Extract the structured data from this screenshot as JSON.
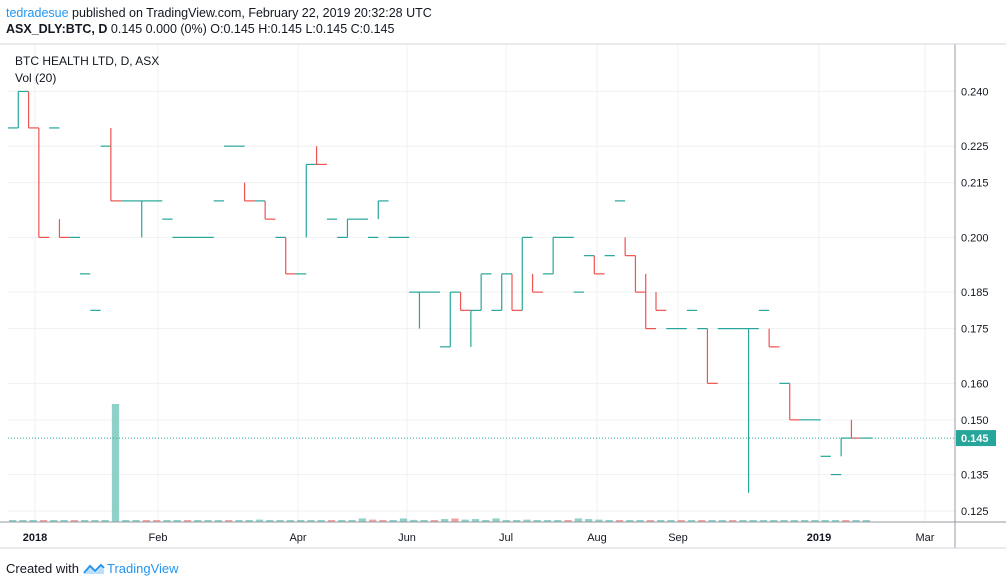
{
  "header": {
    "user": "tedradesue",
    "published": "published on TradingView.com, February 22, 2019 20:32:28 UTC",
    "symbol": "ASX_DLY:BTC, D",
    "quote": "0.145 0.000 (0%) O:0.145 H:0.145 L:0.145 C:0.145"
  },
  "footer": {
    "created_with": "Created with",
    "brand": "TradingView",
    "brand_icon": "tradingview-logo-icon"
  },
  "colors": {
    "up": "#26a69a",
    "down": "#ef5350",
    "vol_up": "#8fd0c8",
    "vol_down": "#f2a3a1",
    "grid": "#eef0f3",
    "axis_text": "#131722",
    "last_price_bg": "#26a69a"
  },
  "chart_data": {
    "type": "ohlc-step",
    "title": "BTC HEALTH LTD, D, ASX",
    "indicator": "Vol (20)",
    "x_labels": [
      "2018",
      "Feb",
      "Apr",
      "Jun",
      "Jul",
      "Aug",
      "Sep",
      "2019",
      "Mar"
    ],
    "bold_x_labels": [
      "2018",
      "2019"
    ],
    "y_ticks": [
      0.24,
      0.225,
      0.215,
      0.2,
      0.185,
      0.175,
      0.16,
      0.15,
      0.135,
      0.125
    ],
    "y_range": [
      0.122,
      0.253
    ],
    "last_price": 0.145,
    "last_price_label": "0.145",
    "grid": true,
    "points": [
      [
        0.23,
        0.23
      ],
      [
        0.23,
        0.24
      ],
      [
        0.24,
        0.23
      ],
      [
        0.23,
        0.2
      ],
      [
        0.23,
        0.23
      ],
      [
        0.205,
        0.2
      ],
      [
        0.2,
        0.2
      ],
      [
        0.19,
        0.19
      ],
      [
        0.18,
        0.18
      ],
      [
        0.225,
        0.225
      ],
      [
        0.23,
        0.21
      ],
      [
        0.21,
        0.21
      ],
      [
        0.21,
        0.21
      ],
      [
        0.2,
        0.21
      ],
      [
        0.21,
        0.21
      ],
      [
        0.205,
        0.205
      ],
      [
        0.2,
        0.2
      ],
      [
        0.2,
        0.2
      ],
      [
        0.2,
        0.2
      ],
      [
        0.2,
        0.2
      ],
      [
        0.21,
        0.21
      ],
      [
        0.225,
        0.225
      ],
      [
        0.225,
        0.225
      ],
      [
        0.215,
        0.21
      ],
      [
        0.21,
        0.21
      ],
      [
        0.21,
        0.205
      ],
      [
        0.2,
        0.2
      ],
      [
        0.2,
        0.19
      ],
      [
        0.19,
        0.19
      ],
      [
        0.2,
        0.22
      ],
      [
        0.225,
        0.22
      ],
      [
        0.205,
        0.205
      ],
      [
        0.2,
        0.2
      ],
      [
        0.2,
        0.205
      ],
      [
        0.205,
        0.205
      ],
      [
        0.2,
        0.2
      ],
      [
        0.205,
        0.21
      ],
      [
        0.2,
        0.2
      ],
      [
        0.2,
        0.2
      ],
      [
        0.185,
        0.185
      ],
      [
        0.175,
        0.185
      ],
      [
        0.185,
        0.185
      ],
      [
        0.17,
        0.17
      ],
      [
        0.17,
        0.185
      ],
      [
        0.185,
        0.18
      ],
      [
        0.17,
        0.18
      ],
      [
        0.18,
        0.19
      ],
      [
        0.18,
        0.18
      ],
      [
        0.18,
        0.19
      ],
      [
        0.19,
        0.18
      ],
      [
        0.18,
        0.2
      ],
      [
        0.19,
        0.185
      ],
      [
        0.19,
        0.19
      ],
      [
        0.19,
        0.2
      ],
      [
        0.2,
        0.2
      ],
      [
        0.185,
        0.185
      ],
      [
        0.195,
        0.195
      ],
      [
        0.195,
        0.19
      ],
      [
        0.195,
        0.195
      ],
      [
        0.21,
        0.21
      ],
      [
        0.2,
        0.195
      ],
      [
        0.195,
        0.185
      ],
      [
        0.19,
        0.175
      ],
      [
        0.185,
        0.18
      ],
      [
        0.175,
        0.175
      ],
      [
        0.175,
        0.175
      ],
      [
        0.18,
        0.18
      ],
      [
        0.175,
        0.175
      ],
      [
        0.175,
        0.16
      ],
      [
        0.175,
        0.175
      ],
      [
        0.175,
        0.175
      ],
      [
        0.175,
        0.175
      ],
      [
        0.13,
        0.175
      ],
      [
        0.18,
        0.18
      ],
      [
        0.175,
        0.17
      ],
      [
        0.16,
        0.16
      ],
      [
        0.16,
        0.15
      ],
      [
        0.15,
        0.15
      ],
      [
        0.15,
        0.15
      ],
      [
        0.14,
        0.14
      ],
      [
        0.135,
        0.135
      ],
      [
        0.14,
        0.145
      ],
      [
        0.15,
        0.145
      ],
      [
        0.145,
        0.145
      ]
    ],
    "volume": {
      "max": 1,
      "bars": [
        [
          0.01,
          0
        ],
        [
          0.008,
          0
        ],
        [
          0.012,
          0
        ],
        [
          0.006,
          1
        ],
        [
          0.01,
          0
        ],
        [
          0.008,
          0
        ],
        [
          0.012,
          1
        ],
        [
          0.01,
          0
        ],
        [
          0.015,
          0
        ],
        [
          0.008,
          0
        ],
        [
          1.0,
          0
        ],
        [
          0.01,
          0
        ],
        [
          0.012,
          0
        ],
        [
          0.008,
          1
        ],
        [
          0.015,
          1
        ],
        [
          0.01,
          0
        ],
        [
          0.008,
          0
        ],
        [
          0.01,
          1
        ],
        [
          0.008,
          0
        ],
        [
          0.012,
          0
        ],
        [
          0.01,
          0
        ],
        [
          0.008,
          1
        ],
        [
          0.012,
          0
        ],
        [
          0.015,
          0
        ],
        [
          0.02,
          0
        ],
        [
          0.01,
          0
        ],
        [
          0.008,
          0
        ],
        [
          0.012,
          0
        ],
        [
          0.01,
          0
        ],
        [
          0.015,
          0
        ],
        [
          0.012,
          0
        ],
        [
          0.01,
          1
        ],
        [
          0.008,
          0
        ],
        [
          0.01,
          0
        ],
        [
          0.03,
          0
        ],
        [
          0.02,
          1
        ],
        [
          0.015,
          1
        ],
        [
          0.01,
          0
        ],
        [
          0.03,
          0
        ],
        [
          0.018,
          0
        ],
        [
          0.01,
          0
        ],
        [
          0.015,
          1
        ],
        [
          0.025,
          0
        ],
        [
          0.03,
          1
        ],
        [
          0.02,
          0
        ],
        [
          0.025,
          0
        ],
        [
          0.015,
          0
        ],
        [
          0.03,
          0
        ],
        [
          0.01,
          0
        ],
        [
          0.012,
          0
        ],
        [
          0.02,
          0
        ],
        [
          0.015,
          0
        ],
        [
          0.01,
          0
        ],
        [
          0.008,
          0
        ],
        [
          0.01,
          1
        ],
        [
          0.03,
          0
        ],
        [
          0.025,
          0
        ],
        [
          0.02,
          0
        ],
        [
          0.01,
          0
        ],
        [
          0.008,
          1
        ],
        [
          0.012,
          0
        ],
        [
          0.01,
          0
        ],
        [
          0.012,
          1
        ],
        [
          0.01,
          0
        ],
        [
          0.015,
          0
        ],
        [
          0.01,
          1
        ],
        [
          0.008,
          0
        ],
        [
          0.01,
          1
        ],
        [
          0.008,
          0
        ],
        [
          0.006,
          0
        ],
        [
          0.012,
          1
        ],
        [
          0.01,
          0
        ],
        [
          0.008,
          0
        ],
        [
          0.006,
          0
        ],
        [
          0.01,
          0
        ],
        [
          0.015,
          0
        ],
        [
          0.006,
          0
        ],
        [
          0.012,
          0
        ],
        [
          0.01,
          0
        ],
        [
          0.008,
          0
        ],
        [
          0.006,
          0
        ],
        [
          0.006,
          1
        ],
        [
          0.006,
          0
        ],
        [
          0.005,
          0
        ]
      ]
    }
  }
}
